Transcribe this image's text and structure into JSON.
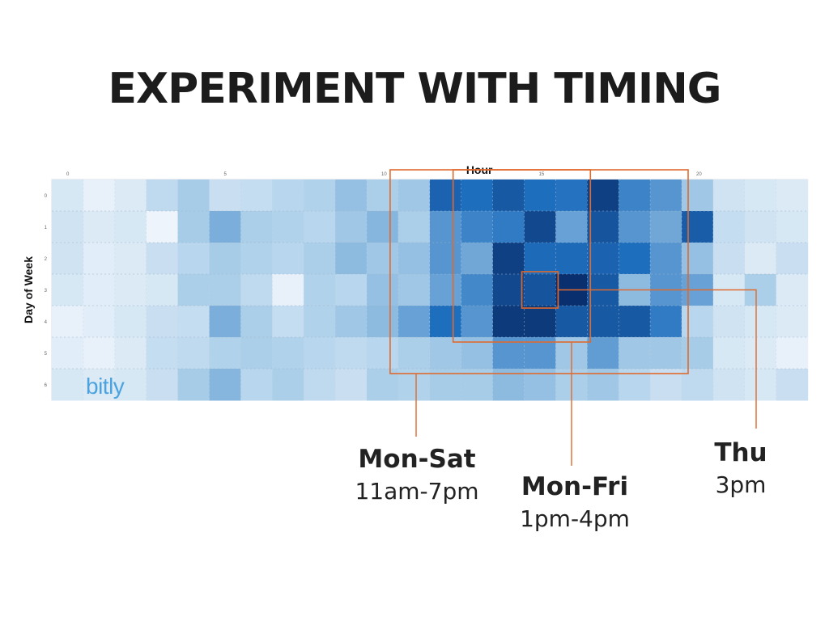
{
  "slide": {
    "title": "EXPERIMENT WITH TIMING"
  },
  "logo": "bitly",
  "chart_data": {
    "type": "heatmap",
    "title": "",
    "xlabel": "Hour",
    "ylabel": "Day of Week",
    "x_ticks": [
      "0",
      "5",
      "10",
      "15",
      "20"
    ],
    "y_ticks": [
      "0",
      "1",
      "2",
      "3",
      "4",
      "5",
      "6"
    ],
    "hours": 24,
    "days": 7,
    "intensity": [
      [
        0.12,
        0.05,
        0.1,
        0.22,
        0.32,
        0.18,
        0.2,
        0.25,
        0.28,
        0.38,
        0.3,
        0.35,
        0.75,
        0.7,
        0.8,
        0.7,
        0.68,
        0.92,
        0.62,
        0.55,
        0.35,
        0.15,
        0.12,
        0.1
      ],
      [
        0.15,
        0.1,
        0.12,
        0.03,
        0.32,
        0.45,
        0.3,
        0.28,
        0.25,
        0.35,
        0.42,
        0.3,
        0.55,
        0.62,
        0.65,
        0.88,
        0.5,
        0.82,
        0.55,
        0.48,
        0.78,
        0.2,
        0.15,
        0.12
      ],
      [
        0.15,
        0.08,
        0.1,
        0.18,
        0.25,
        0.32,
        0.28,
        0.25,
        0.3,
        0.4,
        0.35,
        0.38,
        0.55,
        0.48,
        0.92,
        0.72,
        0.72,
        0.75,
        0.7,
        0.55,
        0.38,
        0.18,
        0.1,
        0.18
      ],
      [
        0.12,
        0.08,
        0.1,
        0.12,
        0.3,
        0.3,
        0.22,
        0.05,
        0.28,
        0.25,
        0.38,
        0.35,
        0.5,
        0.6,
        0.88,
        0.82,
        1.0,
        0.8,
        0.4,
        0.55,
        0.5,
        0.12,
        0.3,
        0.1
      ],
      [
        0.05,
        0.08,
        0.12,
        0.18,
        0.2,
        0.45,
        0.3,
        0.2,
        0.28,
        0.35,
        0.4,
        0.5,
        0.7,
        0.55,
        0.95,
        0.95,
        0.8,
        0.8,
        0.8,
        0.65,
        0.25,
        0.15,
        0.12,
        0.1
      ],
      [
        0.08,
        0.05,
        0.1,
        0.2,
        0.22,
        0.28,
        0.3,
        0.28,
        0.25,
        0.22,
        0.25,
        0.3,
        0.35,
        0.38,
        0.55,
        0.55,
        0.35,
        0.52,
        0.35,
        0.35,
        0.32,
        0.12,
        0.1,
        0.05
      ],
      [
        0.12,
        0.1,
        0.12,
        0.18,
        0.32,
        0.42,
        0.25,
        0.3,
        0.22,
        0.18,
        0.3,
        0.28,
        0.32,
        0.32,
        0.4,
        0.38,
        0.3,
        0.35,
        0.25,
        0.18,
        0.22,
        0.15,
        0.12,
        0.18
      ]
    ],
    "highlights": [
      {
        "name": "Mon-Sat",
        "range": "11am-7pm",
        "hours": [
          11,
          19
        ],
        "days": [
          0,
          6
        ]
      },
      {
        "name": "Mon-Fri",
        "range": "1pm-4pm",
        "hours": [
          13,
          17
        ],
        "days": [
          0,
          5
        ]
      },
      {
        "name": "Thu",
        "range": "3pm",
        "hours": [
          15,
          16
        ],
        "days": [
          3,
          4
        ]
      }
    ],
    "colors": {
      "low": "#f4f8fd",
      "high": "#0a2f6e",
      "highlight": "#e06a2e"
    }
  }
}
